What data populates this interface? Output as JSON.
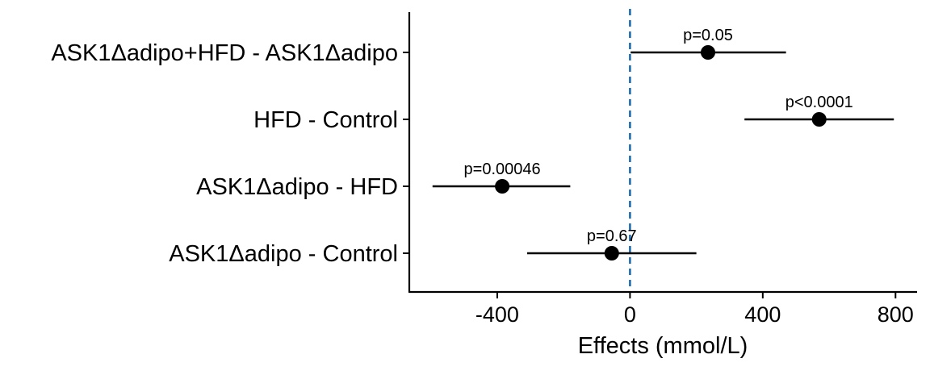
{
  "chart_data": {
    "type": "forest",
    "xlabel": "Effects (mmol/L)",
    "xlim": [
      -665,
      865
    ],
    "xticks": [
      -400,
      0,
      400,
      800
    ],
    "xtick_labels": [
      "-400",
      "0",
      "400",
      "800"
    ],
    "reference_line": 0,
    "reference_line_color": "#1f6cb0",
    "point_color": "#000000",
    "grid": false,
    "comparisons": [
      {
        "label": "ASK1Δadipo+HFD - ASK1Δadipo",
        "estimate": 235,
        "ci": [
          2,
          470
        ],
        "p_label": "p=0.05"
      },
      {
        "label": "HFD - Control",
        "estimate": 570,
        "ci": [
          345,
          795
        ],
        "p_label": "p<0.0001"
      },
      {
        "label": "ASK1Δadipo - HFD",
        "estimate": -385,
        "ci": [
          -595,
          -180
        ],
        "p_label": "p=0.00046"
      },
      {
        "label": "ASK1Δadipo - Control",
        "estimate": -55,
        "ci": [
          -310,
          200
        ],
        "p_label": "p=0.67"
      }
    ]
  }
}
